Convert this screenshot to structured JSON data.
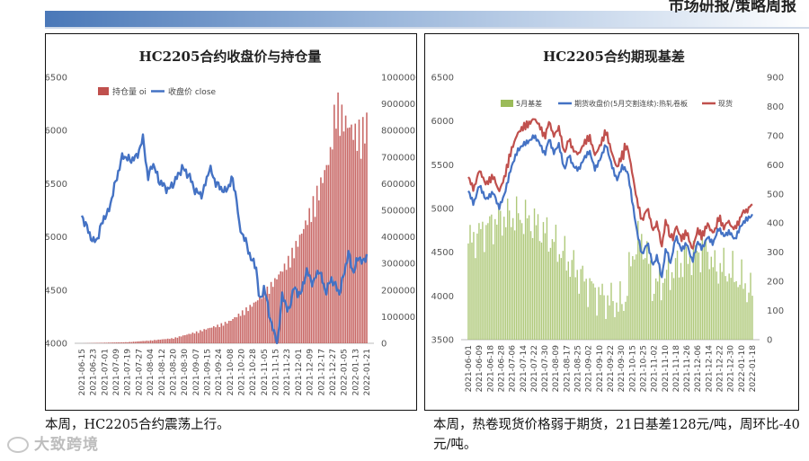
{
  "header": {
    "title": "市场研报/策略周报"
  },
  "watermark": "大致跨境",
  "captions": {
    "left": "本周，HC2205合约震荡上行。",
    "right": "本周，热卷现货价格弱于期货，21日基差128元/吨，周环比-40元/吨。"
  },
  "chart_data": [
    {
      "type": "bar+line",
      "title": "HC2205合约收盘价与持仓量",
      "legend": [
        "持仓量 oi",
        "收盘价 close"
      ],
      "colors": {
        "oi": "#c0504d",
        "close": "#4472c4"
      },
      "x_ticks": [
        "2021-06-15",
        "2021-06-23",
        "2021-07-01",
        "2021-07-09",
        "2021-07-19",
        "2021-07-27",
        "2021-08-04",
        "2021-08-12",
        "2021-08-20",
        "2021-08-30",
        "2021-09-07",
        "2021-09-15",
        "2021-09-24",
        "2021-10-08",
        "2021-10-20",
        "2021-10-28",
        "2021-11-05",
        "2021-11-15",
        "2021-11-23",
        "2021-12-01",
        "2021-12-09",
        "2021-12-17",
        "2021-12-27",
        "2022-01-05",
        "2022-01-13",
        "2022-01-21"
      ],
      "y_left": {
        "ticks": [
          4000,
          4500,
          5000,
          5500,
          6000,
          6500
        ],
        "ylim": [
          4000,
          6500
        ]
      },
      "y_right": {
        "ticks": [
          0,
          100000,
          200000,
          300000,
          400000,
          500000,
          600000,
          700000,
          800000,
          900000,
          1000000
        ],
        "ylim": [
          0,
          1000000
        ]
      },
      "close_anchors": [
        [
          0,
          5200
        ],
        [
          0.6,
          5050
        ],
        [
          1.0,
          4950
        ],
        [
          1.4,
          4990
        ],
        [
          1.9,
          5180
        ],
        [
          2.3,
          5220
        ],
        [
          3.0,
          5530
        ],
        [
          3.6,
          5770
        ],
        [
          4.2,
          5720
        ],
        [
          4.8,
          5750
        ],
        [
          5.4,
          5930
        ],
        [
          5.8,
          5540
        ],
        [
          6.2,
          5700
        ],
        [
          6.8,
          5520
        ],
        [
          7.6,
          5440
        ],
        [
          8.2,
          5530
        ],
        [
          8.8,
          5650
        ],
        [
          9.4,
          5580
        ],
        [
          10.0,
          5420
        ],
        [
          10.6,
          5400
        ],
        [
          11.2,
          5650
        ],
        [
          11.8,
          5500
        ],
        [
          12.6,
          5420
        ],
        [
          13.2,
          5550
        ],
        [
          13.6,
          5350
        ],
        [
          13.8,
          5100
        ],
        [
          14.3,
          4980
        ],
        [
          14.9,
          4780
        ],
        [
          15.3,
          4720
        ],
        [
          15.6,
          4380
        ],
        [
          16.0,
          4530
        ],
        [
          16.5,
          4250
        ],
        [
          16.9,
          4080
        ],
        [
          17.2,
          4020
        ],
        [
          17.6,
          4480
        ],
        [
          18.1,
          4280
        ],
        [
          18.6,
          4520
        ],
        [
          19.2,
          4450
        ],
        [
          19.7,
          4680
        ],
        [
          20.3,
          4560
        ],
        [
          20.8,
          4700
        ],
        [
          21.4,
          4480
        ],
        [
          21.9,
          4610
        ],
        [
          22.6,
          4470
        ],
        [
          23.0,
          4650
        ],
        [
          23.4,
          4850
        ],
        [
          23.8,
          4660
        ],
        [
          24.3,
          4820
        ],
        [
          24.7,
          4750
        ],
        [
          25.0,
          4830
        ]
      ],
      "oi_anchors": [
        [
          0,
          0
        ],
        [
          2,
          2000
        ],
        [
          4,
          4000
        ],
        [
          6,
          10000
        ],
        [
          8,
          18000
        ],
        [
          10,
          40000
        ],
        [
          12,
          65000
        ],
        [
          13,
          80000
        ],
        [
          14,
          110000
        ],
        [
          15,
          140000
        ],
        [
          16,
          180000
        ],
        [
          17,
          230000
        ],
        [
          18,
          290000
        ],
        [
          19,
          370000
        ],
        [
          20,
          470000
        ],
        [
          21,
          580000
        ],
        [
          21.8,
          680000
        ],
        [
          22.3,
          880000
        ],
        [
          22.7,
          830000
        ],
        [
          23.3,
          790000
        ],
        [
          24,
          760000
        ],
        [
          24.6,
          770000
        ],
        [
          25,
          800000
        ]
      ]
    },
    {
      "type": "bar+line",
      "title": "HC2205合约期现基差",
      "legend": [
        "5月基差",
        "期货收盘价(5月交割连续):热轧卷板",
        "现货"
      ],
      "colors": {
        "basis": "#9bbb59",
        "futures": "#4472c4",
        "spot": "#c0504d"
      },
      "x_ticks": [
        "2021-06-01",
        "2021-06-09",
        "2021-06-18",
        "2021-06-28",
        "2021-07-06",
        "2021-07-14",
        "2021-07-22",
        "2021-07-30",
        "2021-08-09",
        "2021-08-17",
        "2021-08-25",
        "2021-09-02",
        "2021-09-10",
        "2021-09-22",
        "2021-09-30",
        "2021-10-15",
        "2021-10-25",
        "2021-11-02",
        "2021-11-10",
        "2021-11-18",
        "2021-11-26",
        "2021-12-06",
        "2021-12-14",
        "2021-12-22",
        "2021-12-30",
        "2022-01-10",
        "2022-01-18"
      ],
      "y_left": {
        "ticks": [
          3500,
          4000,
          4500,
          5000,
          5500,
          6000,
          6500
        ],
        "ylim": [
          3500,
          6500
        ]
      },
      "y_right": {
        "ticks": [
          0,
          100,
          200,
          300,
          400,
          500,
          600,
          700,
          800,
          900
        ],
        "ylim": [
          0,
          900
        ]
      },
      "futures_anchors": [
        [
          0,
          5200
        ],
        [
          0.5,
          5050
        ],
        [
          1.0,
          5270
        ],
        [
          1.6,
          5100
        ],
        [
          2.3,
          5180
        ],
        [
          2.8,
          5000
        ],
        [
          3.3,
          5150
        ],
        [
          3.9,
          5450
        ],
        [
          4.5,
          5650
        ],
        [
          5.1,
          5730
        ],
        [
          5.6,
          5760
        ],
        [
          6.0,
          5820
        ],
        [
          6.5,
          5740
        ],
        [
          7.0,
          5600
        ],
        [
          7.4,
          5790
        ],
        [
          7.8,
          5620
        ],
        [
          8.3,
          5720
        ],
        [
          8.8,
          5420
        ],
        [
          9.2,
          5600
        ],
        [
          9.6,
          5470
        ],
        [
          10.1,
          5430
        ],
        [
          10.6,
          5560
        ],
        [
          11.1,
          5640
        ],
        [
          11.6,
          5430
        ],
        [
          12.1,
          5560
        ],
        [
          12.6,
          5720
        ],
        [
          13.1,
          5490
        ],
        [
          13.6,
          5310
        ],
        [
          14.1,
          5470
        ],
        [
          14.6,
          5400
        ],
        [
          15.0,
          5080
        ],
        [
          15.4,
          4750
        ],
        [
          15.9,
          4460
        ],
        [
          16.4,
          4600
        ],
        [
          16.9,
          4340
        ],
        [
          17.3,
          4450
        ],
        [
          17.7,
          4190
        ],
        [
          18.1,
          4550
        ],
        [
          18.5,
          4360
        ],
        [
          19.0,
          4680
        ],
        [
          19.5,
          4520
        ],
        [
          20.0,
          4600
        ],
        [
          20.5,
          4390
        ],
        [
          21.0,
          4620
        ],
        [
          21.4,
          4540
        ],
        [
          21.9,
          4680
        ],
        [
          22.4,
          4600
        ],
        [
          22.9,
          4780
        ],
        [
          23.4,
          4690
        ],
        [
          23.9,
          4740
        ],
        [
          24.4,
          4650
        ],
        [
          24.9,
          4800
        ],
        [
          25.4,
          4880
        ],
        [
          26.0,
          4930
        ]
      ]
    }
  ]
}
